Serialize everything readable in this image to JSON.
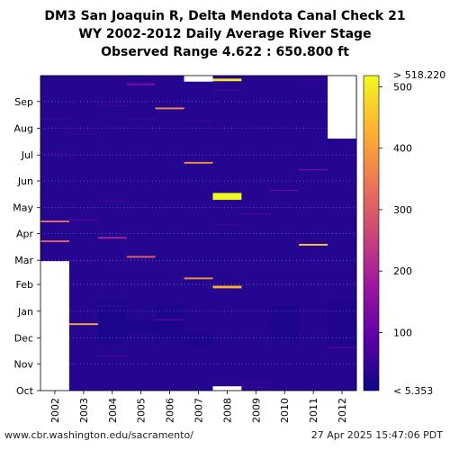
{
  "title_lines": [
    "DM3 San Joaquin R, Delta Mendota Canal Check 21",
    "WY 2002-2012 Daily Average River Stage",
    "Observed Range 4.622 : 650.800 ft"
  ],
  "footer": {
    "left": "www.cbr.washington.edu/sacramento/",
    "right": "27 Apr 2025 15:47:06 PDT"
  },
  "colorbar": {
    "top_label": "> 518.220",
    "bottom_label": "< 5.353",
    "ticks": [
      100,
      200,
      300,
      400,
      500
    ],
    "min": 5.353,
    "max": 518.22,
    "colormap": [
      "#0d0887",
      "#5c01a6",
      "#9c179e",
      "#cc4778",
      "#ed7953",
      "#fdb42f",
      "#f0f921"
    ]
  },
  "chart_data": {
    "type": "heatmap",
    "title": "DM3 San Joaquin R, Delta Mendota Canal Check 21",
    "x_tick_labels": [
      "2002",
      "2003",
      "2004",
      "2005",
      "2006",
      "2007",
      "2008",
      "2009",
      "2010",
      "2011",
      "2012"
    ],
    "y_tick_labels": [
      "Oct",
      "Nov",
      "Dec",
      "Jan",
      "Feb",
      "Mar",
      "Apr",
      "May",
      "Jun",
      "Jul",
      "Aug",
      "Sep"
    ],
    "x_categories": [
      "2002",
      "2003",
      "2004",
      "2005",
      "2006",
      "2007",
      "2008",
      "2009",
      "2010",
      "2011",
      "2012"
    ],
    "y_range_days": [
      0,
      365
    ],
    "base_value_range_ft": [
      20,
      40
    ],
    "missing": [
      {
        "year": "2002",
        "from_day": 0,
        "to_day": 150
      },
      {
        "year": "2007",
        "from_day": 358,
        "to_day": 365
      },
      {
        "year": "2008",
        "from_day": 0,
        "to_day": 5
      },
      {
        "year": "2012",
        "from_day": 292,
        "to_day": 365
      }
    ],
    "highlights": [
      {
        "year": "2002",
        "day": 196,
        "value": 330,
        "days": 2
      },
      {
        "year": "2002",
        "day": 173,
        "value": 320,
        "days": 2
      },
      {
        "year": "2002",
        "day": 315,
        "value": 60,
        "days": 1
      },
      {
        "year": "2002",
        "day": 275,
        "value": 65,
        "days": 1
      },
      {
        "year": "2003",
        "day": 77,
        "value": 415,
        "days": 2
      },
      {
        "year": "2003",
        "day": 198,
        "value": 90,
        "days": 1
      },
      {
        "year": "2003",
        "day": 150,
        "value": 70,
        "days": 1
      },
      {
        "year": "2003",
        "day": 298,
        "value": 60,
        "days": 1
      },
      {
        "year": "2004",
        "day": 177,
        "value": 200,
        "days": 2
      },
      {
        "year": "2004",
        "day": 40,
        "value": 75,
        "days": 1
      },
      {
        "year": "2004",
        "day": 98,
        "value": 65,
        "days": 1
      },
      {
        "year": "2004",
        "day": 220,
        "value": 75,
        "days": 1
      },
      {
        "year": "2004",
        "day": 330,
        "value": 65,
        "days": 1
      },
      {
        "year": "2005",
        "day": 155,
        "value": 310,
        "days": 2
      },
      {
        "year": "2005",
        "day": 355,
        "value": 140,
        "days": 2
      },
      {
        "year": "2005",
        "day": 315,
        "value": 65,
        "days": 1
      },
      {
        "year": "2006",
        "day": 327,
        "value": 375,
        "days": 2
      },
      {
        "year": "2006",
        "day": 82,
        "value": 100,
        "days": 1
      },
      {
        "year": "2007",
        "day": 264,
        "value": 375,
        "days": 2
      },
      {
        "year": "2007",
        "day": 130,
        "value": 380,
        "days": 2
      },
      {
        "year": "2007",
        "day": 312,
        "value": 65,
        "days": 1
      },
      {
        "year": "2008",
        "day": 225,
        "value": 518,
        "days": 8
      },
      {
        "year": "2008",
        "day": 120,
        "value": 430,
        "days": 3
      },
      {
        "year": "2008",
        "day": 360,
        "value": 500,
        "days": 3
      },
      {
        "year": "2008",
        "day": 348,
        "value": 70,
        "days": 1
      },
      {
        "year": "2008",
        "day": 192,
        "value": 60,
        "days": 1
      },
      {
        "year": "2009",
        "day": 205,
        "value": 80,
        "days": 1
      },
      {
        "year": "2009",
        "day": 9,
        "value": 60,
        "days": 1
      },
      {
        "year": "2009",
        "day": 4,
        "value": 60,
        "days": 1
      },
      {
        "year": "2010",
        "day": 232,
        "value": 110,
        "days": 1
      },
      {
        "year": "2011",
        "day": 169,
        "value": 460,
        "days": 2
      },
      {
        "year": "2011",
        "day": 256,
        "value": 120,
        "days": 1
      },
      {
        "year": "2011",
        "day": 360,
        "value": 60,
        "days": 1
      },
      {
        "year": "2012",
        "day": 50,
        "value": 95,
        "days": 1
      }
    ],
    "dark_patches": [
      {
        "year": "2004",
        "from_day": 55,
        "to_day": 105,
        "value": 20
      },
      {
        "year": "2005",
        "from_day": 68,
        "to_day": 80,
        "value": 22
      },
      {
        "year": "2006",
        "from_day": 58,
        "to_day": 100,
        "value": 22
      },
      {
        "year": "2007",
        "from_day": 53,
        "to_day": 66,
        "value": 20
      },
      {
        "year": "2010",
        "from_day": 58,
        "to_day": 98,
        "value": 22
      },
      {
        "year": "2012",
        "from_day": 50,
        "to_day": 105,
        "value": 24
      }
    ]
  }
}
